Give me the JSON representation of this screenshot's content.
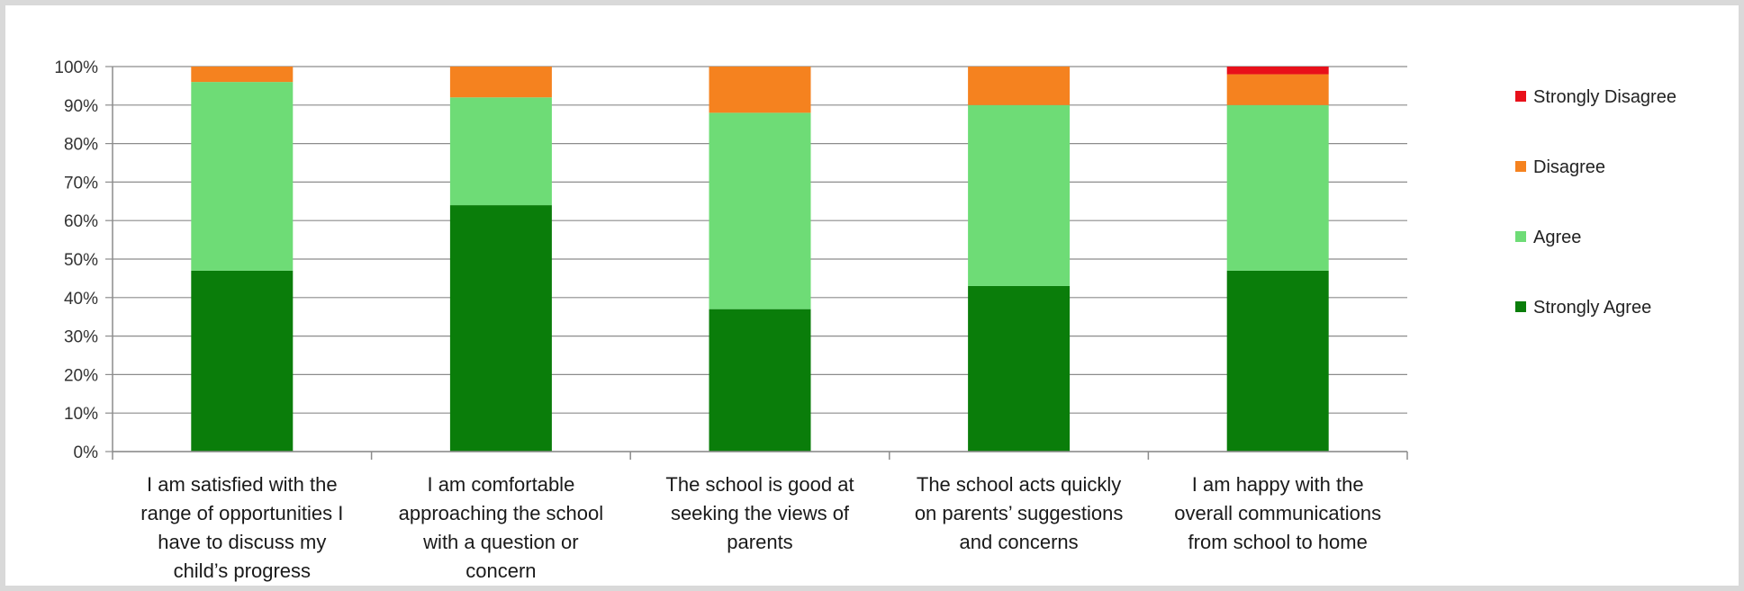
{
  "chart_data": {
    "type": "bar",
    "stacked": true,
    "title": "",
    "xlabel": "",
    "ylabel": "",
    "ylim": [
      0,
      100
    ],
    "yticks": [
      "0%",
      "10%",
      "20%",
      "30%",
      "40%",
      "50%",
      "60%",
      "70%",
      "80%",
      "90%",
      "100%"
    ],
    "grid": true,
    "legend_position": "right",
    "categories": [
      [
        "I am satisfied with the",
        "range of opportunities I",
        "have to discuss my",
        "child’s progress"
      ],
      [
        "I am comfortable",
        "approaching the school",
        "with a question or",
        "concern"
      ],
      [
        "The school is good at",
        "seeking the views of",
        "parents"
      ],
      [
        "The school acts quickly",
        "on parents’ suggestions",
        "and concerns"
      ],
      [
        "I am happy with the",
        "overall communications",
        "from school to home"
      ]
    ],
    "series": [
      {
        "name": "Strongly Agree",
        "color": "#0a7d0a",
        "values": [
          47,
          64,
          37,
          43,
          47
        ]
      },
      {
        "name": "Agree",
        "color": "#6edc76",
        "values": [
          49,
          28,
          51,
          47,
          43
        ]
      },
      {
        "name": "Disagree",
        "color": "#f5821f",
        "values": [
          4,
          8,
          12,
          10,
          8
        ]
      },
      {
        "name": "Strongly Disagree",
        "color": "#e8101a",
        "values": [
          0,
          0,
          0,
          0,
          2
        ]
      }
    ],
    "legend_order": [
      "Strongly Disagree",
      "Disagree",
      "Agree",
      "Strongly Agree"
    ]
  }
}
